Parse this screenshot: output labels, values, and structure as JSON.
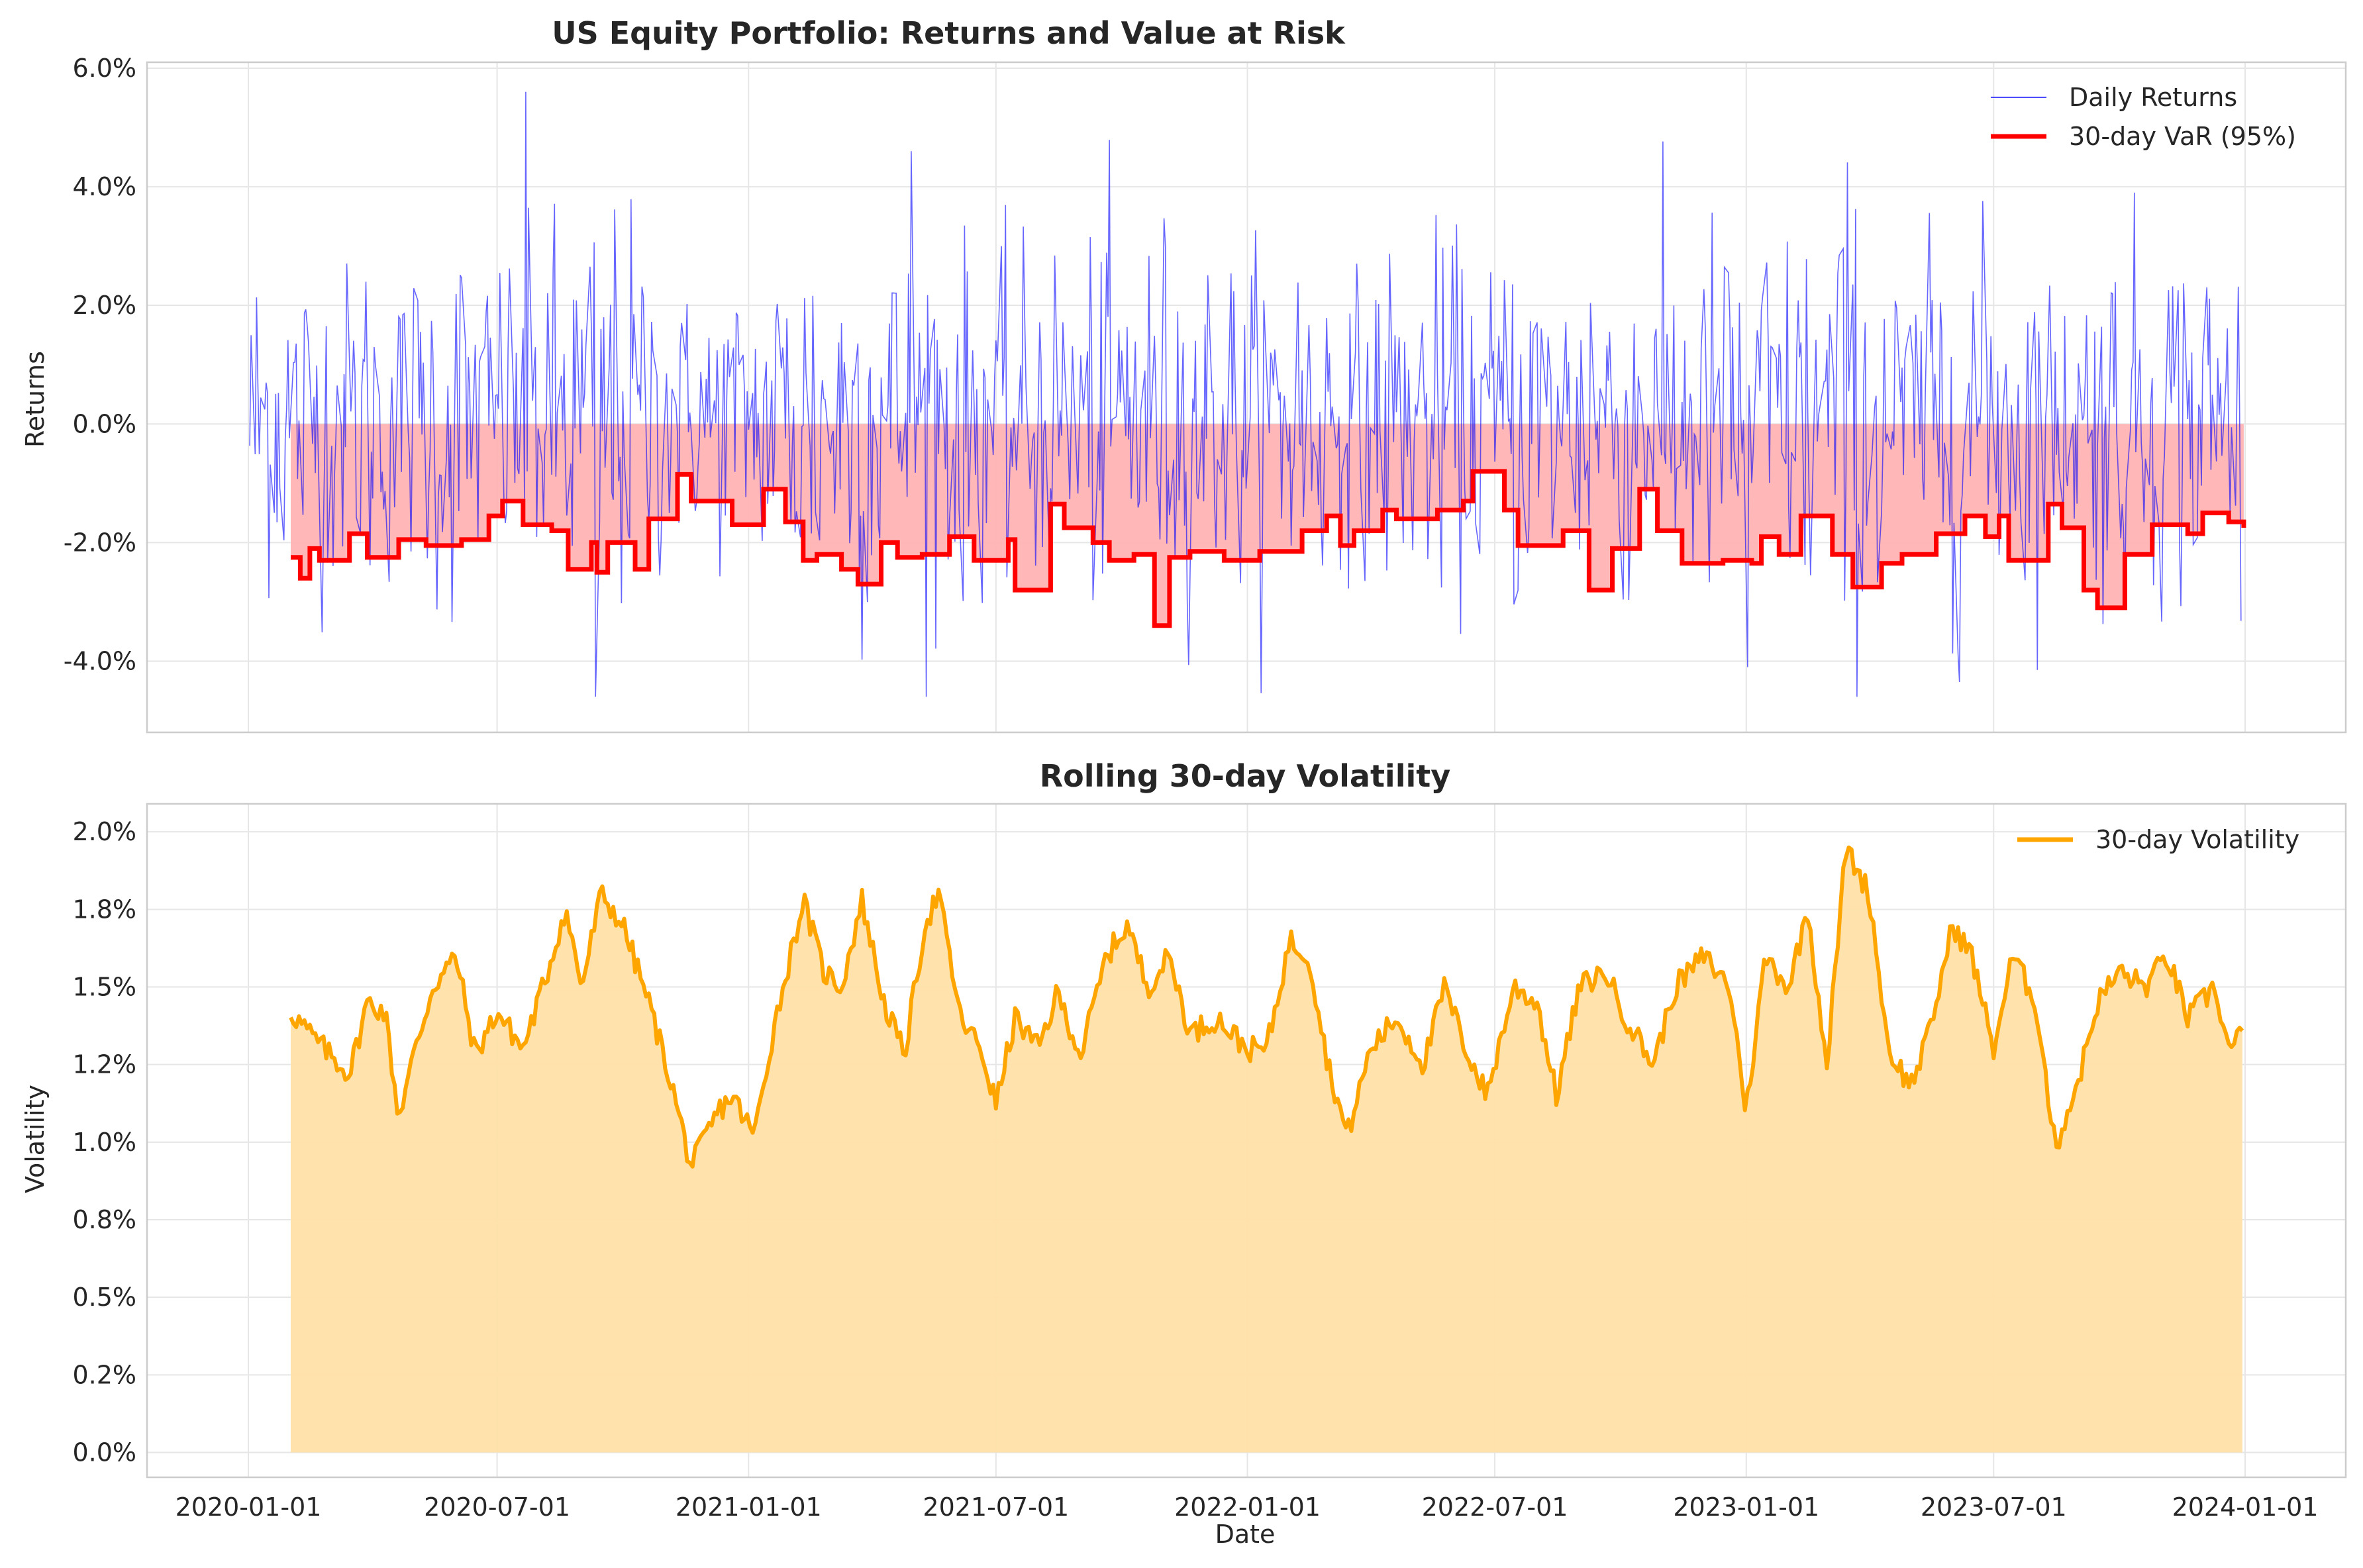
{
  "chart_data": [
    {
      "type": "line",
      "title": "US Equity Portfolio: Returns and Value at Risk",
      "xlabel": "",
      "ylabel": "Returns",
      "x_range": [
        "2020-01-01",
        "2023-12-31"
      ],
      "ylim": [
        -0.052,
        0.061
      ],
      "y_ticks": [
        -0.04,
        -0.02,
        0.0,
        0.02,
        0.04,
        0.06
      ],
      "y_tick_labels": [
        "-4.0%",
        "-2.0%",
        "0.0%",
        "2.0%",
        "4.0%",
        "6.0%"
      ],
      "grid": true,
      "legend_position": "upper right",
      "series": [
        {
          "name": "Daily Returns",
          "color": "#0000ff",
          "style": "thin line",
          "frequency": "daily",
          "approx_range": [
            -0.047,
            0.057
          ],
          "notable_points": [
            {
              "x": "2020-07-22",
              "y": 0.057
            },
            {
              "x": "2020-09-11",
              "y": -0.047
            },
            {
              "x": "2021-04-30",
              "y": 0.046
            },
            {
              "x": "2023-01-02",
              "y": -0.041
            }
          ]
        },
        {
          "name": "30-day VaR (95%)",
          "color": "#ff0000",
          "style": "thick step line with light red fill to 0",
          "fill_color": "#ffb3b3",
          "points": [
            [
              "2020-02-01",
              -0.0225
            ],
            [
              "2020-02-08",
              -0.026
            ],
            [
              "2020-02-15",
              -0.021
            ],
            [
              "2020-02-22",
              -0.023
            ],
            [
              "2020-03-15",
              -0.0185
            ],
            [
              "2020-03-28",
              -0.0225
            ],
            [
              "2020-04-20",
              -0.0195
            ],
            [
              "2020-05-10",
              -0.0205
            ],
            [
              "2020-06-05",
              -0.0195
            ],
            [
              "2020-06-25",
              -0.0155
            ],
            [
              "2020-07-05",
              -0.013
            ],
            [
              "2020-07-20",
              -0.017
            ],
            [
              "2020-08-10",
              -0.018
            ],
            [
              "2020-08-22",
              -0.0245
            ],
            [
              "2020-09-08",
              -0.02
            ],
            [
              "2020-09-12",
              -0.025
            ],
            [
              "2020-09-20",
              -0.02
            ],
            [
              "2020-10-10",
              -0.0245
            ],
            [
              "2020-10-20",
              -0.016
            ],
            [
              "2020-11-10",
              -0.0085
            ],
            [
              "2020-11-20",
              -0.013
            ],
            [
              "2020-12-20",
              -0.017
            ],
            [
              "2021-01-12",
              -0.011
            ],
            [
              "2021-01-28",
              -0.0165
            ],
            [
              "2021-02-10",
              -0.023
            ],
            [
              "2021-02-20",
              -0.022
            ],
            [
              "2021-03-10",
              -0.0245
            ],
            [
              "2021-03-22",
              -0.027
            ],
            [
              "2021-04-08",
              -0.02
            ],
            [
              "2021-04-20",
              -0.0225
            ],
            [
              "2021-05-08",
              -0.022
            ],
            [
              "2021-05-28",
              -0.019
            ],
            [
              "2021-06-15",
              -0.023
            ],
            [
              "2021-07-10",
              -0.0195
            ],
            [
              "2021-07-15",
              -0.028
            ],
            [
              "2021-08-10",
              -0.0135
            ],
            [
              "2021-08-20",
              -0.0175
            ],
            [
              "2021-09-10",
              -0.02
            ],
            [
              "2021-09-22",
              -0.023
            ],
            [
              "2021-10-10",
              -0.022
            ],
            [
              "2021-10-25",
              -0.034
            ],
            [
              "2021-11-05",
              -0.0225
            ],
            [
              "2021-11-20",
              -0.0215
            ],
            [
              "2021-12-15",
              -0.023
            ],
            [
              "2022-01-10",
              -0.0215
            ],
            [
              "2022-02-10",
              -0.018
            ],
            [
              "2022-02-28",
              -0.0155
            ],
            [
              "2022-03-10",
              -0.0205
            ],
            [
              "2022-03-20",
              -0.018
            ],
            [
              "2022-04-10",
              -0.0145
            ],
            [
              "2022-04-20",
              -0.016
            ],
            [
              "2022-05-20",
              -0.0145
            ],
            [
              "2022-06-08",
              -0.013
            ],
            [
              "2022-06-15",
              -0.008
            ],
            [
              "2022-07-08",
              -0.0145
            ],
            [
              "2022-07-18",
              -0.0205
            ],
            [
              "2022-08-20",
              -0.018
            ],
            [
              "2022-09-08",
              -0.028
            ],
            [
              "2022-09-25",
              -0.021
            ],
            [
              "2022-10-15",
              -0.011
            ],
            [
              "2022-10-28",
              -0.018
            ],
            [
              "2022-11-15",
              -0.0235
            ],
            [
              "2022-12-15",
              -0.023
            ],
            [
              "2023-01-05",
              -0.0235
            ],
            [
              "2023-01-12",
              -0.019
            ],
            [
              "2023-01-25",
              -0.022
            ],
            [
              "2023-02-10",
              -0.0155
            ],
            [
              "2023-03-05",
              -0.022
            ],
            [
              "2023-03-20",
              -0.0275
            ],
            [
              "2023-04-10",
              -0.0235
            ],
            [
              "2023-04-25",
              -0.022
            ],
            [
              "2023-05-20",
              -0.0185
            ],
            [
              "2023-06-10",
              -0.0155
            ],
            [
              "2023-06-25",
              -0.019
            ],
            [
              "2023-07-05",
              -0.0155
            ],
            [
              "2023-07-12",
              -0.023
            ],
            [
              "2023-08-10",
              -0.0135
            ],
            [
              "2023-08-20",
              -0.0175
            ],
            [
              "2023-09-05",
              -0.028
            ],
            [
              "2023-09-15",
              -0.031
            ],
            [
              "2023-10-05",
              -0.022
            ],
            [
              "2023-10-25",
              -0.017
            ],
            [
              "2023-11-20",
              -0.0185
            ],
            [
              "2023-12-01",
              -0.015
            ],
            [
              "2023-12-20",
              -0.0165
            ],
            [
              "2023-12-31",
              -0.0175
            ]
          ]
        }
      ]
    },
    {
      "type": "area",
      "title": "Rolling 30-day Volatility",
      "xlabel": "Date",
      "ylabel": "Volatility",
      "x_range": [
        "2020-01-01",
        "2023-12-31"
      ],
      "x_ticks": [
        "2020-01",
        "2020-07",
        "2021-01",
        "2021-07",
        "2022-01",
        "2022-07",
        "2023-01",
        "2023-07",
        "2024-01"
      ],
      "ylim": [
        -0.0008,
        0.0209
      ],
      "y_ticks": [
        0.0,
        0.0025,
        0.005,
        0.0075,
        0.01,
        0.0125,
        0.015,
        0.0175,
        0.02
      ],
      "y_tick_labels": [
        "0.0%",
        "0.2%",
        "0.5%",
        "0.8%",
        "1.0%",
        "1.2%",
        "1.5%",
        "1.8%",
        "2.0%"
      ],
      "grid": true,
      "legend_position": "upper right",
      "series": [
        {
          "name": "30-day Volatility",
          "color": "#ffa500",
          "fill_color": "#ffe0a8",
          "points": [
            [
              "2020-02-01",
              0.0142
            ],
            [
              "2020-02-15",
              0.0135
            ],
            [
              "2020-03-01",
              0.0128
            ],
            [
              "2020-03-15",
              0.0122
            ],
            [
              "2020-03-28",
              0.0145
            ],
            [
              "2020-04-10",
              0.0142
            ],
            [
              "2020-04-20",
              0.0108
            ],
            [
              "2020-05-01",
              0.0128
            ],
            [
              "2020-05-15",
              0.015
            ],
            [
              "2020-06-01",
              0.016
            ],
            [
              "2020-06-15",
              0.0128
            ],
            [
              "2020-07-01",
              0.0142
            ],
            [
              "2020-07-20",
              0.013
            ],
            [
              "2020-08-05",
              0.0152
            ],
            [
              "2020-08-20",
              0.0175
            ],
            [
              "2020-09-01",
              0.015
            ],
            [
              "2020-09-15",
              0.018
            ],
            [
              "2020-10-01",
              0.017
            ],
            [
              "2020-10-20",
              0.0145
            ],
            [
              "2020-11-05",
              0.012
            ],
            [
              "2020-11-20",
              0.0092
            ],
            [
              "2020-12-10",
              0.011
            ],
            [
              "2020-12-20",
              0.0115
            ],
            [
              "2021-01-05",
              0.0102
            ],
            [
              "2021-01-20",
              0.0138
            ],
            [
              "2021-02-10",
              0.0178
            ],
            [
              "2021-02-25",
              0.0155
            ],
            [
              "2021-03-10",
              0.015
            ],
            [
              "2021-03-25",
              0.0178
            ],
            [
              "2021-04-10",
              0.0145
            ],
            [
              "2021-04-25",
              0.0128
            ],
            [
              "2021-05-10",
              0.017
            ],
            [
              "2021-05-20",
              0.018
            ],
            [
              "2021-06-05",
              0.014
            ],
            [
              "2021-06-20",
              0.013
            ],
            [
              "2021-07-01",
              0.0112
            ],
            [
              "2021-07-15",
              0.014
            ],
            [
              "2021-08-01",
              0.013
            ],
            [
              "2021-08-15",
              0.0148
            ],
            [
              "2021-09-01",
              0.0128
            ],
            [
              "2021-09-20",
              0.016
            ],
            [
              "2021-10-05",
              0.017
            ],
            [
              "2021-10-20",
              0.015
            ],
            [
              "2021-11-05",
              0.016
            ],
            [
              "2021-11-20",
              0.0135
            ],
            [
              "2021-12-10",
              0.014
            ],
            [
              "2022-01-01",
              0.013
            ],
            [
              "2022-01-15",
              0.013
            ],
            [
              "2022-02-01",
              0.0165
            ],
            [
              "2022-02-15",
              0.016
            ],
            [
              "2022-03-01",
              0.0125
            ],
            [
              "2022-03-15",
              0.0102
            ],
            [
              "2022-04-01",
              0.013
            ],
            [
              "2022-04-20",
              0.014
            ],
            [
              "2022-05-10",
              0.0125
            ],
            [
              "2022-05-25",
              0.015
            ],
            [
              "2022-06-10",
              0.013
            ],
            [
              "2022-06-25",
              0.0115
            ],
            [
              "2022-07-15",
              0.015
            ],
            [
              "2022-08-01",
              0.0145
            ],
            [
              "2022-08-15",
              0.0115
            ],
            [
              "2022-09-01",
              0.015
            ],
            [
              "2022-09-20",
              0.0155
            ],
            [
              "2022-10-05",
              0.014
            ],
            [
              "2022-10-25",
              0.0125
            ],
            [
              "2022-11-10",
              0.015
            ],
            [
              "2022-12-01",
              0.016
            ],
            [
              "2022-12-20",
              0.015
            ],
            [
              "2023-01-01",
              0.011
            ],
            [
              "2023-01-15",
              0.016
            ],
            [
              "2023-02-01",
              0.015
            ],
            [
              "2023-02-15",
              0.0175
            ],
            [
              "2023-03-01",
              0.0125
            ],
            [
              "2023-03-15",
              0.0195
            ],
            [
              "2023-04-01",
              0.018
            ],
            [
              "2023-04-15",
              0.013
            ],
            [
              "2023-05-01",
              0.0118
            ],
            [
              "2023-05-15",
              0.0135
            ],
            [
              "2023-06-01",
              0.017
            ],
            [
              "2023-06-15",
              0.016
            ],
            [
              "2023-07-01",
              0.013
            ],
            [
              "2023-07-15",
              0.016
            ],
            [
              "2023-08-01",
              0.0145
            ],
            [
              "2023-08-15",
              0.0098
            ],
            [
              "2023-09-01",
              0.012
            ],
            [
              "2023-09-15",
              0.0145
            ],
            [
              "2023-10-01",
              0.0155
            ],
            [
              "2023-10-20",
              0.015
            ],
            [
              "2023-11-05",
              0.016
            ],
            [
              "2023-11-20",
              0.014
            ],
            [
              "2023-12-10",
              0.015
            ],
            [
              "2023-12-20",
              0.013
            ],
            [
              "2023-12-31",
              0.0135
            ]
          ]
        }
      ]
    }
  ]
}
